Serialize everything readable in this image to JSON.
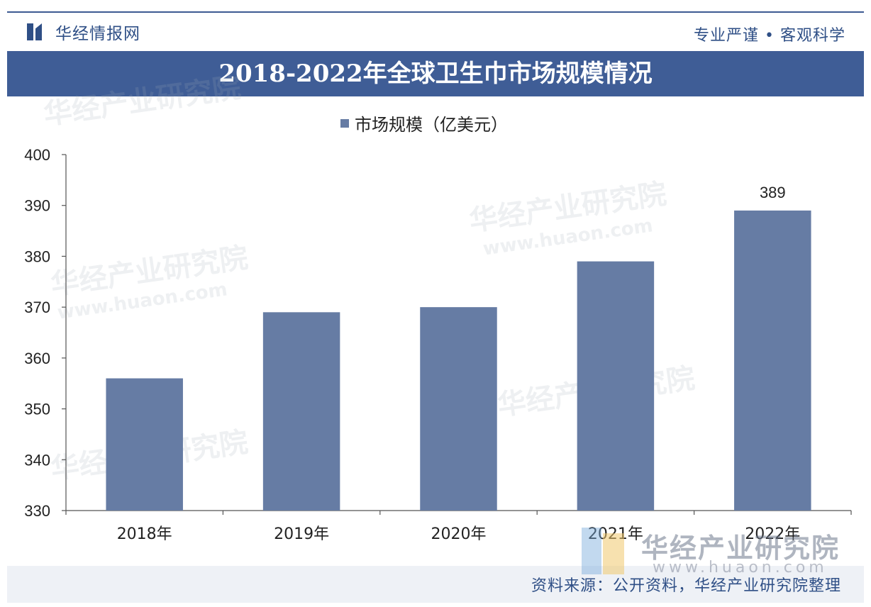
{
  "header": {
    "brand": "华经情报网",
    "slogan": "专业严谨 • 客观科学"
  },
  "watermark": {
    "text": "华经产业研究院",
    "url": "www.huaon.com",
    "corner_url": "www.huaon.com"
  },
  "footer": {
    "source": "资料来源：公开资料，华经产业研究院整理"
  },
  "colors": {
    "header_bar": "#3f5d96",
    "bar": "#667ca4",
    "brand": "#2f4f86"
  },
  "chart_data": {
    "type": "bar",
    "title": "2018-2022年全球卫生巾市场规模情况",
    "categories": [
      "2018年",
      "2019年",
      "2020年",
      "2021年",
      "2022年"
    ],
    "series": [
      {
        "name": "市场规模（亿美元）",
        "values": [
          356,
          369,
          370,
          379,
          389
        ]
      }
    ],
    "data_labels": [
      null,
      null,
      null,
      null,
      "389"
    ],
    "ylim": [
      330,
      400
    ],
    "yticks": [
      330,
      340,
      350,
      360,
      370,
      380,
      390,
      400
    ],
    "legend_position": "top-center",
    "grid": false
  }
}
